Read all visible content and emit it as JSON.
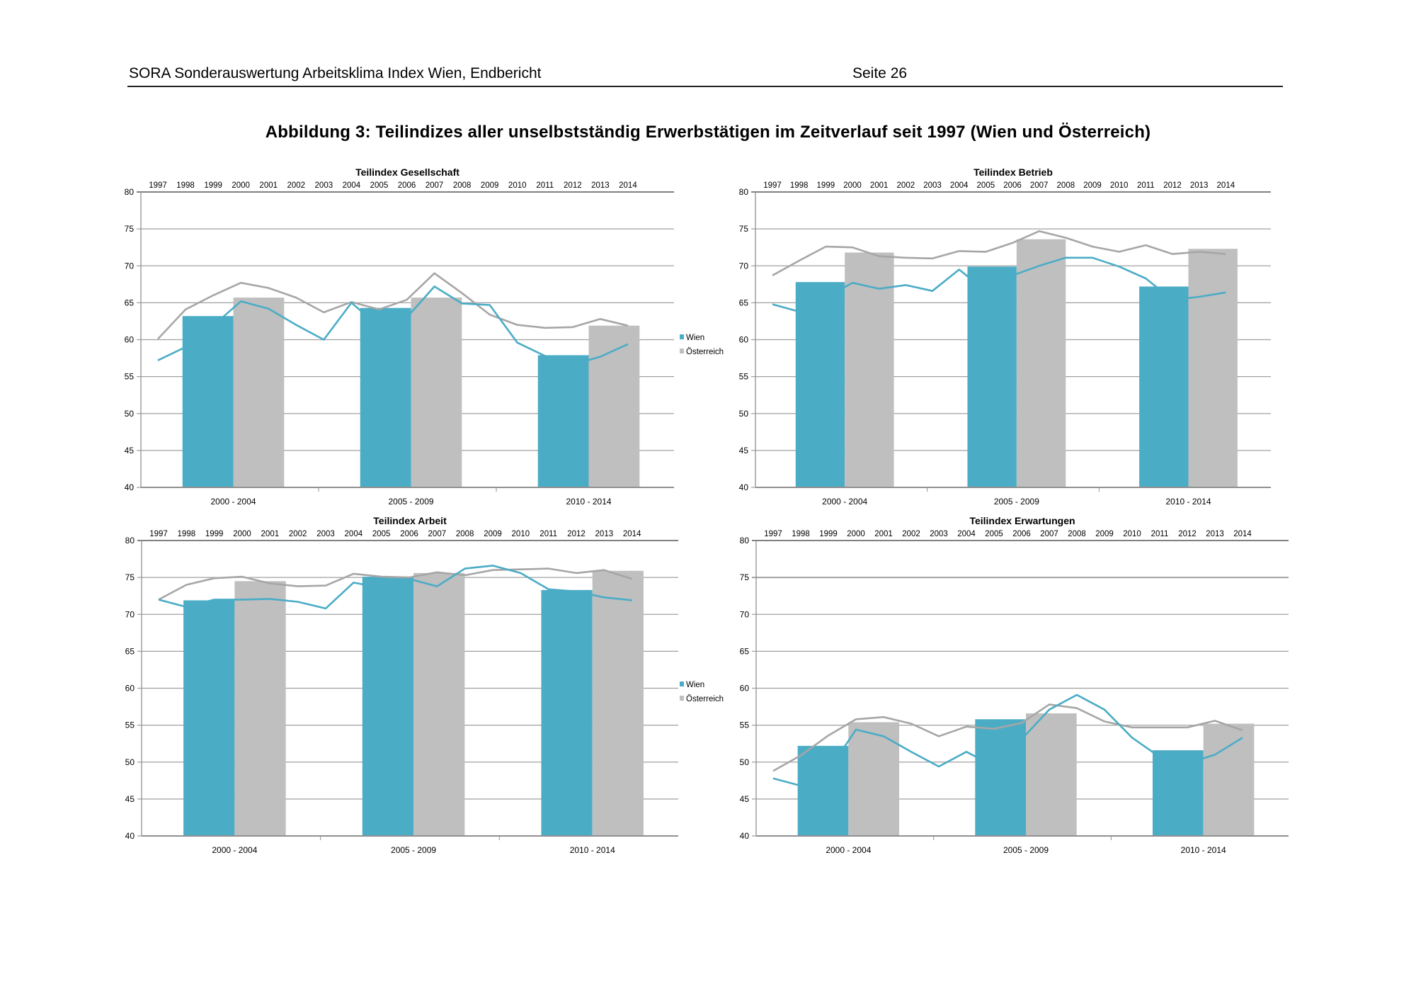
{
  "header": {
    "left": "SORA Sonderauswertung Arbeitsklima Index Wien, Endbericht",
    "page": "Seite 26"
  },
  "figure_title": "Abbildung 3: Teilindizes aller unselbstständig Erwerbstätigen im Zeitverlauf seit 1997 (Wien und Österreich)",
  "colors": {
    "wien": "#4BACC6",
    "oesterreich": "#BFBFBF",
    "oesterreich_line": "#A6A6A6",
    "grid": "#A0A0A0"
  },
  "chart_data": [
    {
      "type": "bar+line",
      "title": "Teilindex Gesellschaft",
      "years": [
        "1997",
        "1998",
        "1999",
        "2000",
        "2001",
        "2002",
        "2003",
        "2004",
        "2005",
        "2006",
        "2007",
        "2008",
        "2009",
        "2010",
        "2011",
        "2012",
        "2013",
        "2014"
      ],
      "categories": [
        "2000 - 2004",
        "2005 - 2009",
        "2010 - 2014"
      ],
      "ylim": [
        40,
        80
      ],
      "yticks": [
        40,
        45,
        50,
        55,
        60,
        65,
        70,
        75,
        80
      ],
      "legend": [
        "Wien",
        "Österreich"
      ],
      "legend_position": "right",
      "bars": [
        {
          "name": "Wien",
          "values": [
            63.2,
            64.3,
            57.9
          ]
        },
        {
          "name": "Österreich",
          "values": [
            65.7,
            65.7,
            61.9
          ]
        }
      ],
      "lines": [
        {
          "name": "Wien",
          "values": [
            57.2,
            59.0,
            61.9,
            65.2,
            64.2,
            62.0,
            60.0,
            65.0,
            61.8,
            63.0,
            67.2,
            64.9,
            64.7,
            59.6,
            57.8,
            56.6,
            57.7,
            59.4
          ]
        },
        {
          "name": "Österreich",
          "values": [
            60.1,
            64.1,
            66.0,
            67.7,
            67.0,
            65.7,
            63.7,
            65.1,
            64.1,
            65.4,
            69.0,
            66.3,
            63.4,
            62.0,
            61.6,
            61.7,
            62.8,
            61.9
          ]
        }
      ]
    },
    {
      "type": "bar+line",
      "title": "Teilindex Betrieb",
      "years": [
        "1997",
        "1998",
        "1999",
        "2000",
        "2001",
        "2002",
        "2003",
        "2004",
        "2005",
        "2006",
        "2007",
        "2008",
        "2009",
        "2010",
        "2011",
        "2012",
        "2013",
        "2014"
      ],
      "categories": [
        "2000 - 2004",
        "2005 - 2009",
        "2010 - 2014"
      ],
      "ylim": [
        40,
        80
      ],
      "yticks": [
        40,
        45,
        50,
        55,
        60,
        65,
        70,
        75,
        80
      ],
      "legend": [],
      "bars": [
        {
          "name": "Wien",
          "values": [
            67.8,
            69.9,
            67.2
          ]
        },
        {
          "name": "Österreich",
          "values": [
            71.8,
            73.6,
            72.3
          ]
        }
      ],
      "lines": [
        {
          "name": "Wien",
          "values": [
            64.8,
            63.8,
            65.7,
            67.7,
            66.9,
            67.4,
            66.6,
            69.5,
            66.6,
            68.7,
            70.0,
            71.1,
            71.1,
            69.9,
            68.3,
            65.4,
            65.8,
            66.4
          ]
        },
        {
          "name": "Österreich",
          "values": [
            68.7,
            70.7,
            72.6,
            72.5,
            71.3,
            71.1,
            71.0,
            72.0,
            71.9,
            73.1,
            74.7,
            73.8,
            72.6,
            71.9,
            72.8,
            71.6,
            71.9,
            71.6
          ]
        }
      ]
    },
    {
      "type": "bar+line",
      "title": "Teilindex Arbeit",
      "years": [
        "1997",
        "1998",
        "1999",
        "2000",
        "2001",
        "2002",
        "2003",
        "2004",
        "2005",
        "2006",
        "2007",
        "2008",
        "2009",
        "2010",
        "2011",
        "2012",
        "2013",
        "2014"
      ],
      "categories": [
        "2000 - 2004",
        "2005 - 2009",
        "2010 - 2014"
      ],
      "ylim": [
        40,
        80
      ],
      "yticks": [
        40,
        45,
        50,
        55,
        60,
        65,
        70,
        75,
        80
      ],
      "legend": [
        "Wien",
        "Österreich"
      ],
      "legend_position": "right",
      "bars": [
        {
          "name": "Wien",
          "values": [
            71.9,
            75.1,
            73.3
          ]
        },
        {
          "name": "Österreich",
          "values": [
            74.5,
            75.6,
            75.9
          ]
        }
      ],
      "lines": [
        {
          "name": "Wien",
          "values": [
            72.0,
            71.0,
            72.0,
            72.0,
            72.1,
            71.7,
            70.8,
            74.3,
            73.6,
            74.8,
            73.8,
            76.2,
            76.6,
            75.6,
            73.4,
            73.1,
            72.3,
            71.9
          ]
        },
        {
          "name": "Österreich",
          "values": [
            72.0,
            74.0,
            74.9,
            75.1,
            74.2,
            73.8,
            73.9,
            75.5,
            75.1,
            75.0,
            75.7,
            75.3,
            76.0,
            76.1,
            76.2,
            75.6,
            76.0,
            74.8
          ]
        }
      ]
    },
    {
      "type": "bar+line",
      "title": "Teilindex Erwartungen",
      "years": [
        "1997",
        "1998",
        "1999",
        "2000",
        "2001",
        "2002",
        "2003",
        "2004",
        "2005",
        "2006",
        "2007",
        "2008",
        "2009",
        "2010",
        "2011",
        "2012",
        "2013",
        "2014"
      ],
      "categories": [
        "2000 - 2004",
        "2005 - 2009",
        "2010 - 2014"
      ],
      "ylim": [
        40,
        80
      ],
      "yticks": [
        40,
        45,
        50,
        55,
        60,
        65,
        70,
        75,
        80
      ],
      "legend": [],
      "bars": [
        {
          "name": "Wien",
          "values": [
            52.2,
            55.8,
            51.6
          ]
        },
        {
          "name": "Österreich",
          "values": [
            55.4,
            56.6,
            55.2
          ]
        }
      ],
      "lines": [
        {
          "name": "Wien",
          "values": [
            47.8,
            46.8,
            48.8,
            54.4,
            53.5,
            51.4,
            49.4,
            51.4,
            49.4,
            53.1,
            57.1,
            59.1,
            57.1,
            53.3,
            50.7,
            49.8,
            51.0,
            53.3
          ]
        },
        {
          "name": "Österreich",
          "values": [
            48.8,
            50.9,
            53.6,
            55.8,
            56.1,
            55.2,
            53.5,
            54.8,
            54.5,
            55.3,
            57.8,
            57.3,
            55.5,
            54.7,
            54.7,
            54.7,
            55.6,
            54.3
          ]
        }
      ]
    }
  ]
}
